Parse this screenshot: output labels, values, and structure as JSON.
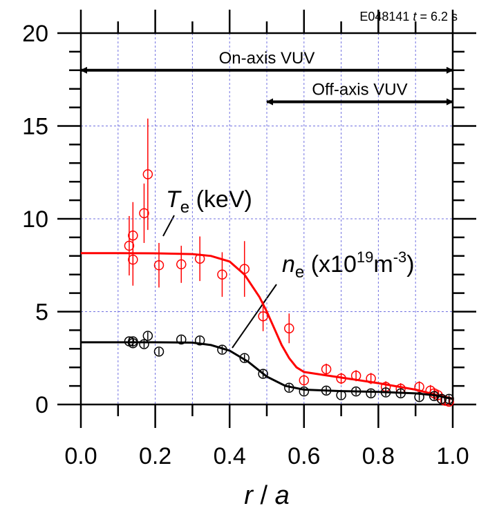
{
  "chart_data": {
    "type": "scatter",
    "title_parts": [
      "E048141 ",
      "t",
      " = 6.2 s"
    ],
    "xlabel_parts": [
      "r",
      " / ",
      "a"
    ],
    "xlim": [
      0,
      1
    ],
    "ylim": [
      0,
      20
    ],
    "xticks": [
      {
        "value": 0,
        "label": "0.0"
      },
      0.2,
      0.4,
      0.6,
      0.8,
      {
        "value": 1,
        "label": "1.0"
      }
    ],
    "yticks": [
      0,
      5,
      10,
      15,
      20
    ],
    "xminor": [
      0.1,
      0.3,
      0.5,
      0.7,
      0.9
    ],
    "yminor": [
      1,
      2,
      3,
      4,
      6,
      7,
      8,
      9,
      11,
      12,
      13,
      14,
      16,
      17,
      18,
      19
    ],
    "grid": true,
    "arrows": [
      {
        "label": "On-axis VUV",
        "x": [
          0,
          1
        ],
        "y": 18
      },
      {
        "label": "Off-axis VUV",
        "x": [
          0.5,
          1
        ],
        "y": 16.3
      }
    ],
    "series": [
      {
        "name_parts": [
          "T",
          "e",
          " (keV)"
        ],
        "color": "#ff0000",
        "x": [
          0.13,
          0.14,
          0.14,
          0.17,
          0.18,
          0.21,
          0.27,
          0.32,
          0.38,
          0.44,
          0.49,
          0.56,
          0.6,
          0.66,
          0.7,
          0.74,
          0.78,
          0.82,
          0.86,
          0.91,
          0.94,
          0.95,
          0.96,
          0.97,
          0.98,
          0.99
        ],
        "values": [
          8.55,
          9.1,
          7.8,
          10.3,
          12.4,
          7.5,
          7.55,
          7.85,
          7.0,
          7.3,
          4.75,
          4.1,
          1.3,
          1.9,
          1.4,
          1.55,
          1.4,
          0.95,
          0.85,
          0.95,
          0.75,
          0.6,
          0.5,
          0.3,
          0.2,
          0.15
        ],
        "errors": [
          1.6,
          1.8,
          1.4,
          1.6,
          3.0,
          1.2,
          1.0,
          1.2,
          1.2,
          1.5,
          0.8,
          0.8,
          0.3,
          0.3,
          0.3,
          0.3,
          0.3,
          0.3,
          0.3,
          0.3,
          0.3,
          0.3,
          0.3,
          0.3,
          0.2,
          0.2
        ],
        "fit_x": [
          0,
          0.1,
          0.2,
          0.3,
          0.35,
          0.4,
          0.44,
          0.48,
          0.5,
          0.52,
          0.54,
          0.56,
          0.58,
          0.6,
          0.65,
          0.7,
          0.8,
          0.9,
          0.95,
          1.0
        ],
        "fit": [
          8.15,
          8.15,
          8.14,
          8.1,
          8.0,
          7.7,
          7.0,
          5.8,
          5.0,
          4.1,
          3.2,
          2.5,
          2.0,
          1.75,
          1.6,
          1.45,
          1.15,
          0.8,
          0.55,
          0.3
        ]
      },
      {
        "name_parts": [
          "n",
          "e",
          " (x10",
          "19",
          "m",
          "-3",
          ")"
        ],
        "color": "#000000",
        "x": [
          0.13,
          0.14,
          0.14,
          0.17,
          0.18,
          0.21,
          0.27,
          0.32,
          0.38,
          0.44,
          0.49,
          0.56,
          0.6,
          0.66,
          0.7,
          0.74,
          0.78,
          0.82,
          0.86,
          0.91,
          0.95,
          0.97,
          0.99
        ],
        "values": [
          3.4,
          3.4,
          3.3,
          3.25,
          3.7,
          2.85,
          3.5,
          3.45,
          2.95,
          2.5,
          1.65,
          0.9,
          0.7,
          0.75,
          0.5,
          0.7,
          0.6,
          0.65,
          0.6,
          0.4,
          0.45,
          0.3,
          0.3
        ],
        "errors": [
          0.2,
          0.2,
          0.2,
          0.2,
          0.2,
          0.2,
          0.2,
          0.2,
          0.2,
          0.2,
          0.2,
          0.2,
          0.2,
          0.2,
          0.2,
          0.2,
          0.2,
          0.2,
          0.2,
          0.2,
          0.2,
          0.2,
          0.2
        ],
        "fit_x": [
          0,
          0.1,
          0.2,
          0.3,
          0.35,
          0.4,
          0.45,
          0.5,
          0.55,
          0.6,
          0.7,
          0.8,
          0.9,
          0.95,
          1.0
        ],
        "fit": [
          3.35,
          3.35,
          3.35,
          3.33,
          3.2,
          2.9,
          2.3,
          1.5,
          1.0,
          0.8,
          0.72,
          0.68,
          0.6,
          0.5,
          0.3
        ]
      }
    ]
  }
}
